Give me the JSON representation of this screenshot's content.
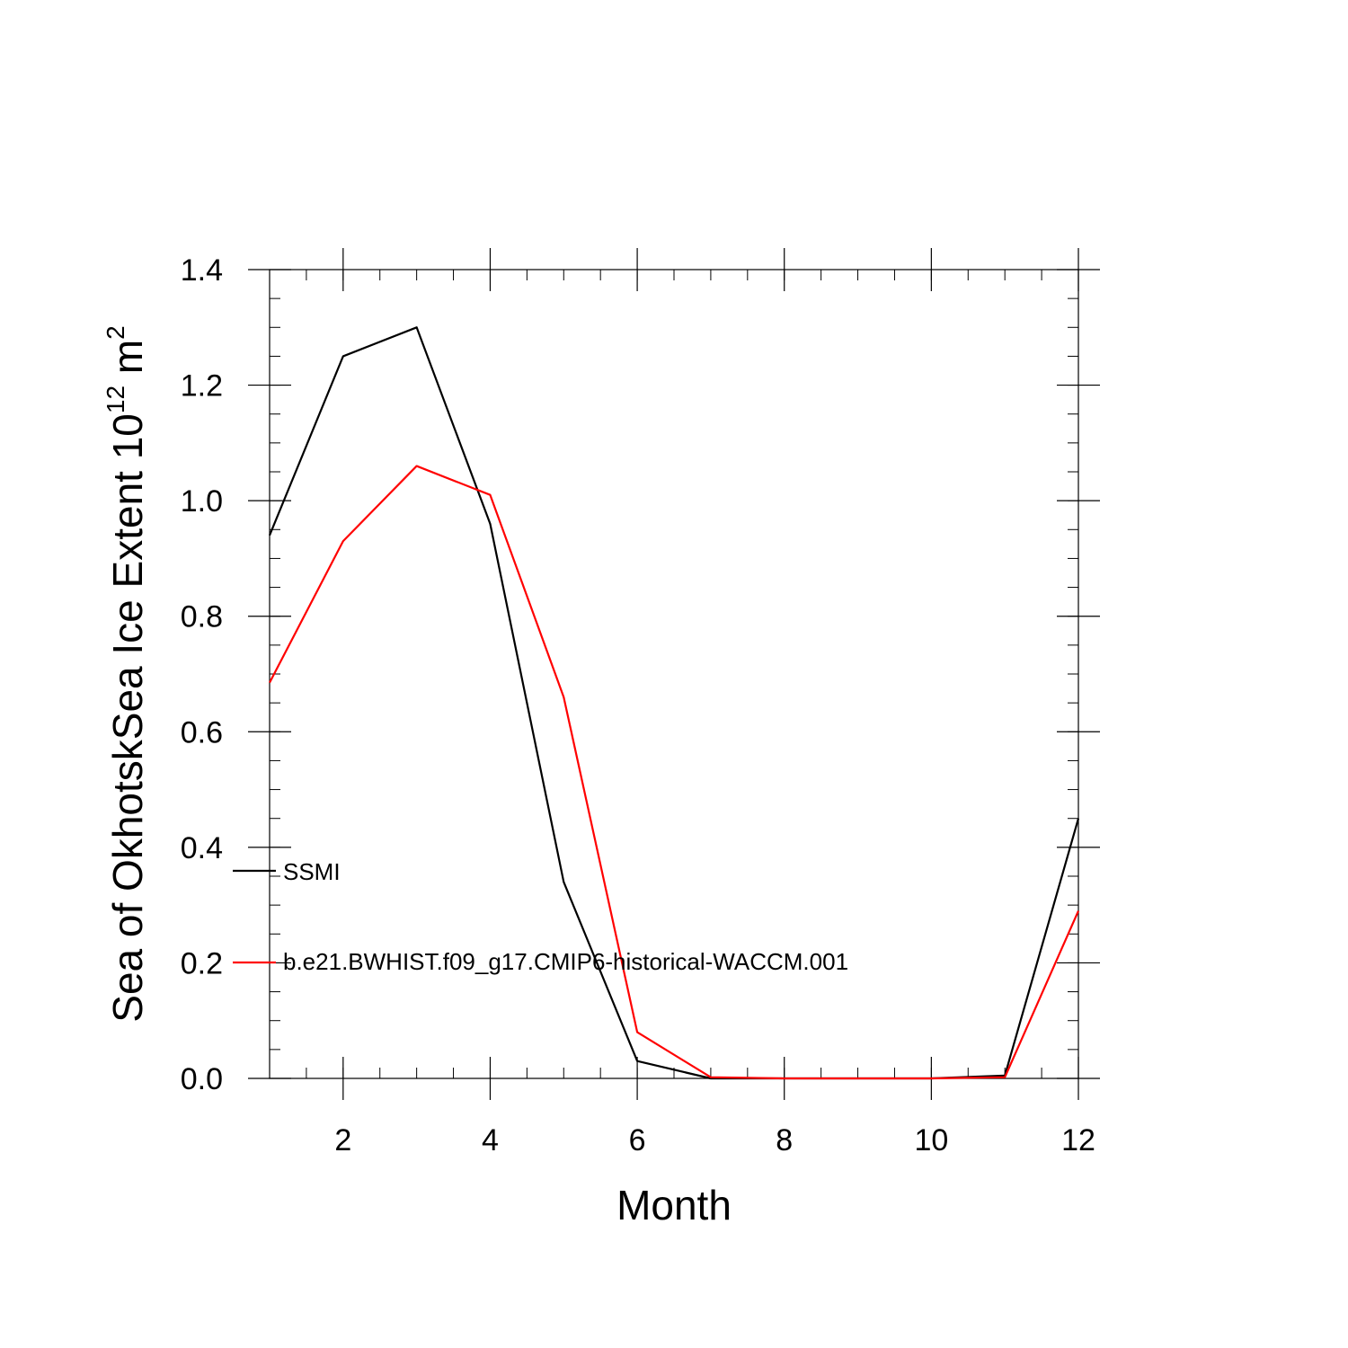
{
  "chart_data": {
    "type": "line",
    "xlabel": "Month",
    "ylabel_main": "Sea of OkhotskSea Ice Extent 10",
    "ylabel_sup": "12",
    "ylabel_unit": " m",
    "ylabel_unit_sup": "2",
    "xlim": [
      1,
      12
    ],
    "ylim": [
      0,
      1.4
    ],
    "x_ticks": [
      2,
      4,
      6,
      8,
      10,
      12
    ],
    "x_tick_labels": [
      "2",
      "4",
      "6",
      "8",
      "10",
      "12"
    ],
    "y_ticks": [
      0,
      0.2,
      0.4,
      0.6,
      0.8,
      1.0,
      1.2,
      1.4
    ],
    "y_tick_labels": [
      "0.0",
      "0.2",
      "0.4",
      "0.6",
      "0.8",
      "1.0",
      "1.2",
      "1.4"
    ],
    "grid": false,
    "legend_position": "lower-left inside",
    "x": [
      1,
      2,
      3,
      4,
      5,
      6,
      7,
      8,
      9,
      10,
      11,
      12
    ],
    "series": [
      {
        "name": "SSMI",
        "color": "#000000",
        "values": [
          0.94,
          1.25,
          1.3,
          0.96,
          0.34,
          0.03,
          0.0,
          0.0,
          0.0,
          0.0,
          0.005,
          0.45
        ]
      },
      {
        "name": "b.e21.BWHIST.f09_g17.CMIP6-historical-WACCM.001",
        "color": "#ff0000",
        "values": [
          0.685,
          0.93,
          1.06,
          1.01,
          0.66,
          0.08,
          0.002,
          0.0,
          0.0,
          0.0,
          0.002,
          0.29
        ]
      }
    ]
  }
}
